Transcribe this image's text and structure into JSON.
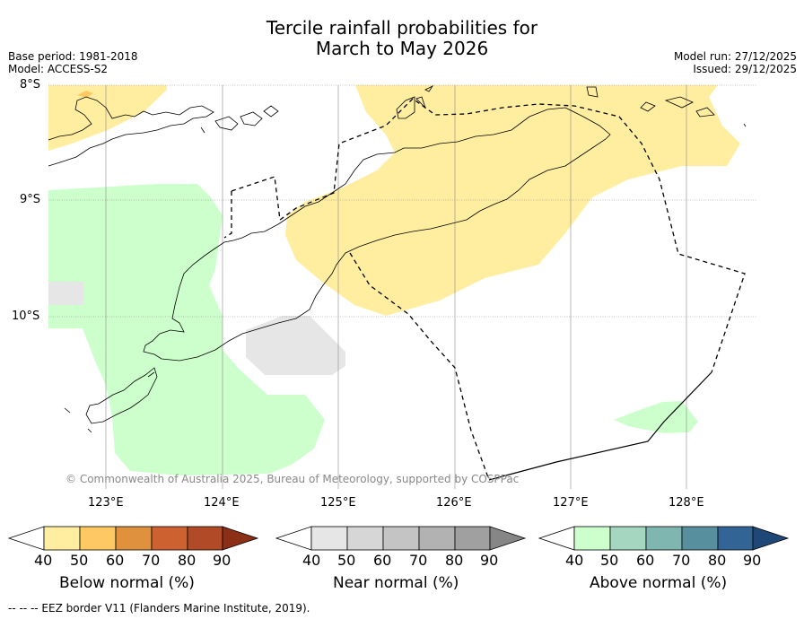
{
  "title_line1": "Tercile rainfall probabilities for",
  "title_line2": "March to May 2026",
  "base_period": "Base period: 1981-2018",
  "model": "Model: ACCESS-S2",
  "model_run": "Model run: 27/12/2025",
  "issued": "Issued: 29/12/2025",
  "latitudes": [
    "8°S",
    "9°S",
    "10°S"
  ],
  "longitudes": [
    "123°E",
    "124°E",
    "125°E",
    "126°E",
    "127°E",
    "128°E"
  ],
  "copyright": "© Commonwealth of Australia 2025, Bureau of Meteorology, supported by COSPPac",
  "footer": "--  --  -- EEZ border V11 (Flanders Marine Institute, 2019).",
  "colorbars": [
    {
      "caption": "Below normal (%)",
      "ticks": [
        "40",
        "50",
        "60",
        "70",
        "80",
        "90"
      ],
      "colors": [
        "#ffeda0",
        "#fec862",
        "#e0913d",
        "#cd6130",
        "#b04a27",
        "#8b3016"
      ]
    },
    {
      "caption": "Near normal (%)",
      "ticks": [
        "40",
        "50",
        "60",
        "70",
        "80",
        "90"
      ],
      "colors": [
        "#e6e6e6",
        "#d6d6d6",
        "#c4c4c4",
        "#b2b2b2",
        "#a0a0a0",
        "#868686"
      ]
    },
    {
      "caption": "Above normal (%)",
      "ticks": [
        "40",
        "50",
        "60",
        "70",
        "80",
        "90"
      ],
      "colors": [
        "#ccffcc",
        "#a5d6bf",
        "#80b6b0",
        "#588f9e",
        "#326496",
        "#1f4879"
      ]
    }
  ],
  "colors": {
    "below_40": "#ffeda0",
    "near_40": "#e6e6e6",
    "above_40": "#ccffcc",
    "grid": "#888888",
    "coast": "#000000",
    "copyright_text": "#888888"
  }
}
